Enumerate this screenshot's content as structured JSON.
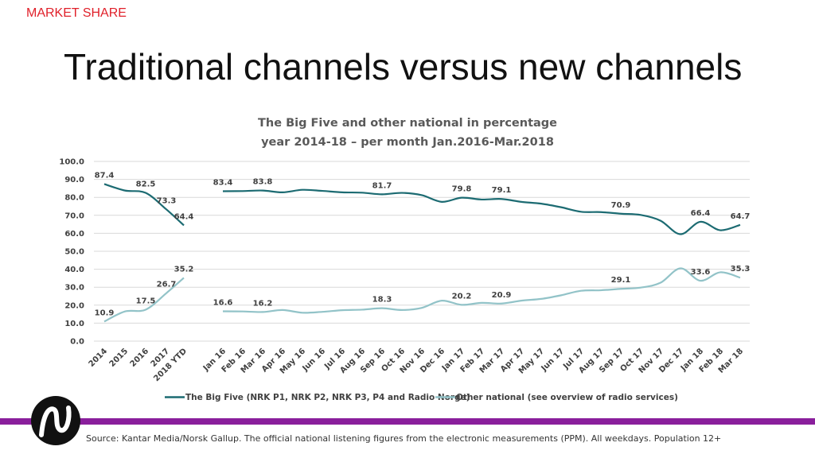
{
  "header": {
    "section": "MARKET SHARE",
    "title": "Traditional channels versus new channels"
  },
  "footer": {
    "source": "Source: Kantar Media/Norsk Gallup. The official national listening figures from the electronic measurements (PPM). All weekdays. Population 12+"
  },
  "colors": {
    "big_five": "#1c6b72",
    "other_national": "#92c3c8",
    "accent": "#e0202a",
    "bar": "#8a1f9c"
  },
  "chart_data": {
    "type": "line",
    "title": [
      "The Big Five and other national in percentage",
      "year 2014-18 – per month Jan.2016-Mar.2018"
    ],
    "ylim": [
      0,
      100
    ],
    "yticks": [
      "100.0",
      "90.0",
      "80.0",
      "70.0",
      "60.0",
      "50.0",
      "40.0",
      "30.0",
      "20.0",
      "10.0",
      "0.0"
    ],
    "grid": true,
    "legend_position": "bottom",
    "annual": {
      "categories": [
        "2014",
        "2015",
        "2016",
        "2017",
        "2018 YTD"
      ],
      "series": [
        {
          "name": "The Big Five (NRK P1, NRK P2, NRK P3, P4 and Radio Norge)",
          "values": [
            87.4,
            83.8,
            82.5,
            73.3,
            64.4
          ],
          "labels": [
            "87.4",
            "",
            "82.5",
            "73.3",
            "64.4"
          ]
        },
        {
          "name": "Other national (see overview of radio services)",
          "values": [
            10.9,
            16.5,
            17.5,
            26.7,
            35.2
          ],
          "labels": [
            "10.9",
            "",
            "17.5",
            "26.7",
            "35.2"
          ]
        }
      ]
    },
    "monthly": {
      "categories": [
        "Jan 16",
        "Feb 16",
        "Mar 16",
        "Apr 16",
        "May 16",
        "Jun 16",
        "Jul 16",
        "Aug 16",
        "Sep 16",
        "Oct 16",
        "Nov 16",
        "Dec 16",
        "Jan 17",
        "Feb 17",
        "Mar 17",
        "Apr 17",
        "May 17",
        "Jun 17",
        "Jul 17",
        "Aug 17",
        "Sep 17",
        "Oct 17",
        "Nov 17",
        "Dec 17",
        "Jan 18",
        "Feb 18",
        "Mar 18"
      ],
      "series": [
        {
          "name": "The Big Five (NRK P1, NRK P2, NRK P3, P4 and Radio Norge)",
          "values": [
            83.4,
            83.5,
            83.8,
            82.8,
            84.2,
            83.6,
            82.8,
            82.6,
            81.7,
            82.5,
            81.2,
            77.5,
            79.8,
            78.8,
            79.1,
            77.5,
            76.5,
            74.5,
            72.0,
            71.8,
            70.9,
            70.2,
            67.0,
            59.5,
            66.4,
            61.7,
            64.7
          ],
          "labels": [
            "83.4",
            "",
            "83.8",
            "",
            "",
            "",
            "",
            "",
            "81.7",
            "",
            "",
            "",
            "79.8",
            "",
            "79.1",
            "",
            "",
            "",
            "",
            "",
            "70.9",
            "",
            "",
            "",
            "66.4",
            "",
            "64.7"
          ]
        },
        {
          "name": "Other national (see overview of radio services)",
          "values": [
            16.6,
            16.5,
            16.2,
            17.3,
            15.8,
            16.3,
            17.2,
            17.5,
            18.3,
            17.3,
            18.5,
            22.5,
            20.2,
            21.3,
            20.9,
            22.5,
            23.5,
            25.5,
            28.0,
            28.3,
            29.1,
            29.8,
            32.5,
            40.5,
            33.6,
            38.3,
            35.3
          ],
          "labels": [
            "16.6",
            "",
            "16.2",
            "",
            "",
            "",
            "",
            "",
            "18.3",
            "",
            "",
            "",
            "20.2",
            "",
            "20.9",
            "",
            "",
            "",
            "",
            "",
            "29.1",
            "",
            "",
            "",
            "33.6",
            "",
            "35.3"
          ]
        }
      ]
    }
  }
}
